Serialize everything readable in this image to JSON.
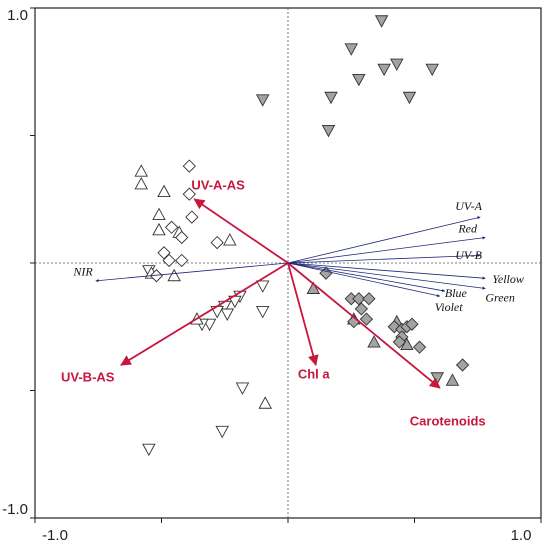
{
  "chart_data": {
    "type": "biplot",
    "xlim": [
      -1,
      1
    ],
    "ylim": [
      -1,
      1
    ],
    "xticks": [
      {
        "value": -1,
        "label": "-1.0"
      },
      {
        "value": 1,
        "label": "1.0"
      }
    ],
    "yticks": [
      {
        "value": 1,
        "label": "1.0"
      },
      {
        "value": -1,
        "label": "-1.0"
      }
    ],
    "minor_xticks": [
      -0.5,
      0,
      0.5
    ],
    "minor_yticks": [
      0.5,
      0,
      -0.5
    ],
    "zero_lines": true,
    "series": [
      {
        "marker": "triangle-down",
        "color": "#a3a3a3",
        "x": [
          0.37,
          0.25,
          0.43,
          0.38,
          0.57,
          0.28,
          0.17,
          0.48,
          -0.1,
          0.16,
          0.59
        ],
        "y": [
          0.95,
          0.84,
          0.78,
          0.76,
          0.76,
          0.72,
          0.65,
          0.65,
          0.64,
          0.52,
          -0.45
        ]
      },
      {
        "marker": "triangle-down",
        "color": "#ffffff",
        "x": [
          -0.55,
          -0.19,
          -0.1,
          -0.1,
          -0.31,
          -0.34,
          -0.25,
          -0.24,
          -0.28,
          -0.21,
          -0.18,
          -0.26,
          -0.55
        ],
        "y": [
          -0.03,
          -0.13,
          -0.09,
          -0.19,
          -0.24,
          -0.24,
          -0.17,
          -0.2,
          -0.19,
          -0.15,
          -0.49,
          -0.66,
          -0.73
        ]
      },
      {
        "marker": "triangle-up",
        "color": "#ffffff",
        "x": [
          -0.58,
          -0.58,
          -0.49,
          -0.51,
          -0.51,
          -0.43,
          -0.45,
          -0.54,
          -0.23,
          -0.09,
          -0.36
        ],
        "y": [
          0.36,
          0.31,
          0.28,
          0.19,
          0.13,
          0.12,
          -0.05,
          -0.04,
          0.09,
          -0.55,
          -0.22
        ]
      },
      {
        "marker": "triangle-up",
        "color": "#a3a3a3",
        "x": [
          0.1,
          0.26,
          0.34,
          0.43,
          0.47,
          0.65
        ],
        "y": [
          -0.1,
          -0.22,
          -0.31,
          -0.23,
          -0.32,
          -0.46
        ]
      },
      {
        "marker": "diamond",
        "color": "#ffffff",
        "x": [
          -0.39,
          -0.39,
          -0.38,
          -0.46,
          -0.42,
          -0.49,
          -0.47,
          -0.42,
          -0.28,
          -0.52
        ],
        "y": [
          0.38,
          0.27,
          0.18,
          0.14,
          0.1,
          0.04,
          0.01,
          0.01,
          0.08,
          -0.05
        ]
      },
      {
        "marker": "diamond",
        "color": "#a3a3a3",
        "x": [
          0.15,
          0.25,
          0.28,
          0.32,
          0.29,
          0.26,
          0.31,
          0.42,
          0.45,
          0.47,
          0.49,
          0.45,
          0.52,
          0.44,
          0.69
        ],
        "y": [
          -0.04,
          -0.14,
          -0.14,
          -0.14,
          -0.18,
          -0.23,
          -0.22,
          -0.25,
          -0.26,
          -0.25,
          -0.24,
          -0.29,
          -0.33,
          -0.31,
          -0.4
        ]
      }
    ],
    "vector_groups": [
      {
        "color": "#c8163d",
        "vectors": [
          {
            "label": "UV-A-AS",
            "x": -0.37,
            "y": 0.25
          },
          {
            "label": "UV-B-AS",
            "x": -0.66,
            "y": -0.4
          },
          {
            "label": "Chl a",
            "x": 0.11,
            "y": -0.4
          },
          {
            "label": "Carotenoids",
            "x": 0.6,
            "y": -0.49
          }
        ]
      },
      {
        "color": "#1f2a7a",
        "vectors": [
          {
            "label": "UV-A",
            "x": 0.76,
            "y": 0.18
          },
          {
            "label": "Red",
            "x": 0.78,
            "y": 0.1
          },
          {
            "label": "UV-B",
            "x": 0.76,
            "y": 0.03
          },
          {
            "label": "Yellow",
            "x": 0.78,
            "y": -0.06
          },
          {
            "label": "Green",
            "x": 0.78,
            "y": -0.1
          },
          {
            "label": "Blue",
            "x": 0.62,
            "y": -0.11
          },
          {
            "label": "Violet",
            "x": 0.6,
            "y": -0.13
          },
          {
            "label": "NIR",
            "x": -0.76,
            "y": -0.07
          }
        ]
      }
    ]
  }
}
